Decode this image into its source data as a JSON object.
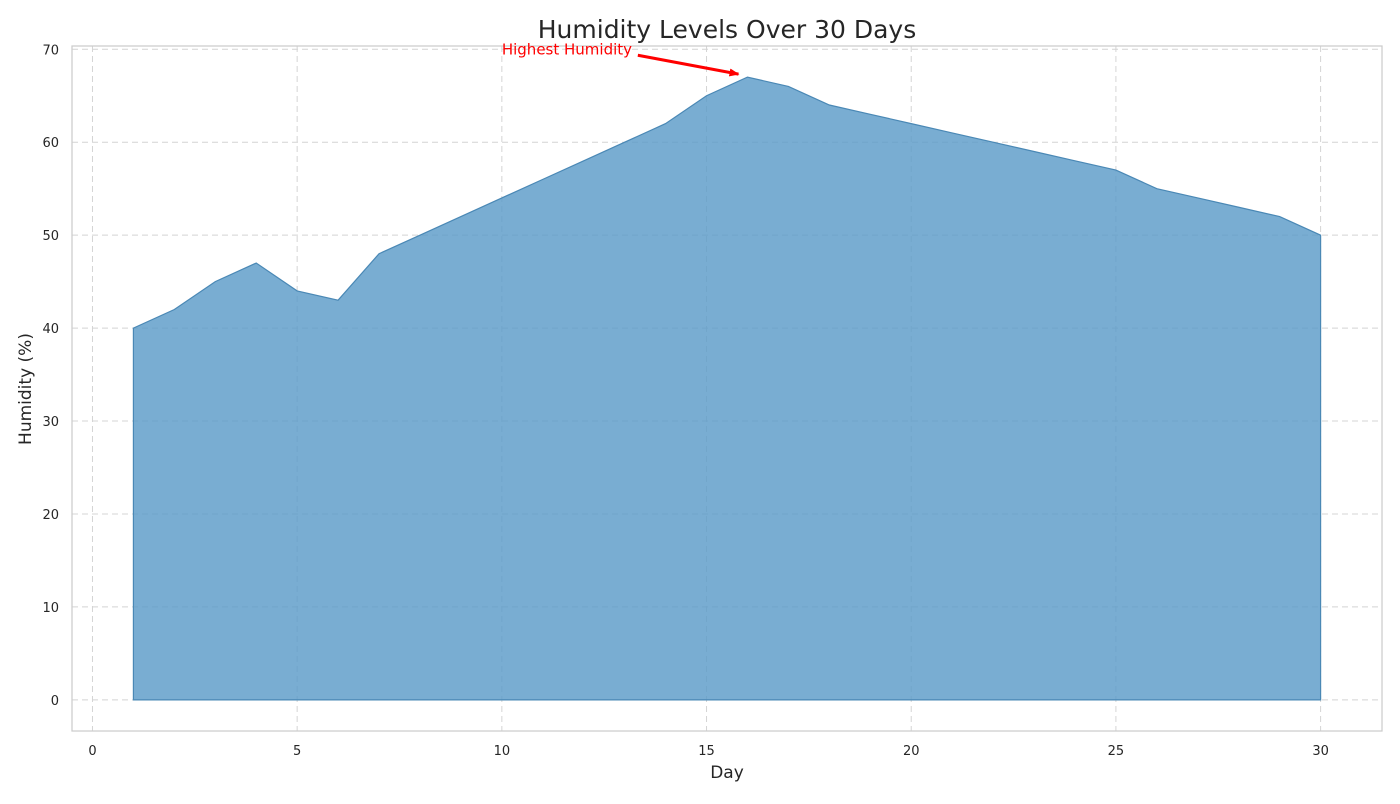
{
  "chart_data": {
    "type": "area",
    "title": "Humidity Levels Over 30 Days",
    "xlabel": "Day",
    "ylabel": "Humidity (%)",
    "x": [
      1,
      2,
      3,
      4,
      5,
      6,
      7,
      8,
      9,
      10,
      11,
      12,
      13,
      14,
      15,
      16,
      17,
      18,
      19,
      20,
      21,
      22,
      23,
      24,
      25,
      26,
      27,
      28,
      29,
      30
    ],
    "values": [
      40,
      42,
      45,
      47,
      44,
      43,
      48,
      50,
      52,
      54,
      56,
      58,
      60,
      62,
      65,
      67,
      66,
      64,
      63,
      62,
      61,
      60,
      59,
      58,
      57,
      55,
      54,
      53,
      52,
      50
    ],
    "xlim": [
      -0.5,
      31.5
    ],
    "ylim": [
      -3.35,
      70.35
    ],
    "xticks": [
      0,
      5,
      10,
      15,
      20,
      25,
      30
    ],
    "yticks": [
      0,
      10,
      20,
      30,
      40,
      50,
      60,
      70
    ],
    "grid": true,
    "fill_color": "#5b9bc8",
    "line_color": "#4a88b5",
    "annotation": {
      "text": "Highest Humidity",
      "color": "#ff0000",
      "point": {
        "x": 16,
        "y": 67
      },
      "text_pos": {
        "x": 10,
        "y": 70
      }
    }
  }
}
